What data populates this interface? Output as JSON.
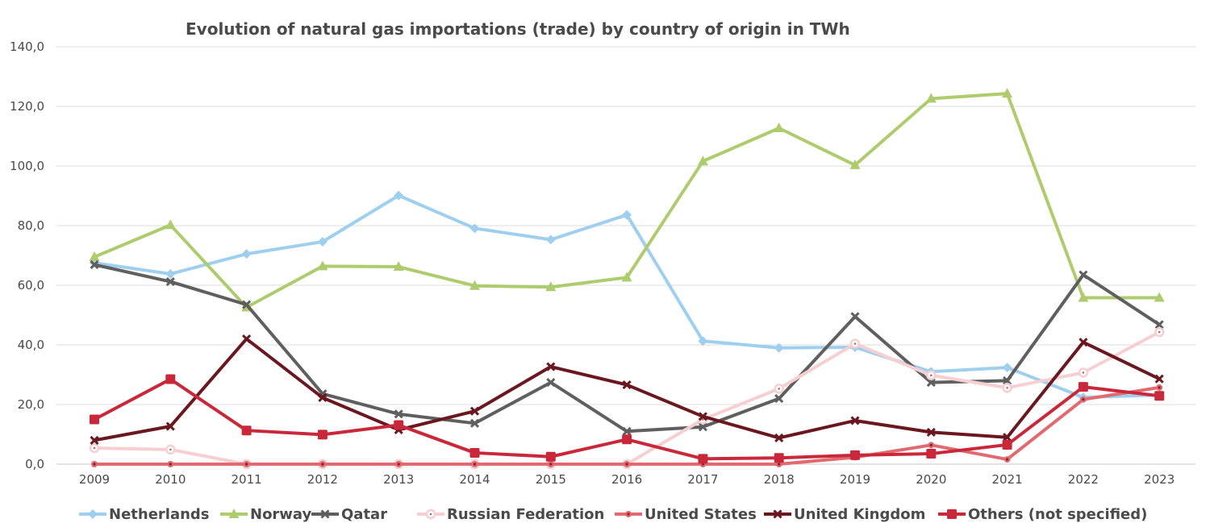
{
  "chart_data": {
    "type": "line",
    "title": "Evolution of natural gas importations (trade) by country of origin in TWh",
    "xlabel": "",
    "ylabel": "",
    "ylim": [
      0,
      140
    ],
    "y_ticks": [
      "0,0",
      "20,0",
      "40,0",
      "60,0",
      "80,0",
      "100,0",
      "120,0",
      "140,0"
    ],
    "grid": true,
    "legend_position": "bottom",
    "categories": [
      "2009",
      "2010",
      "2011",
      "2012",
      "2013",
      "2014",
      "2015",
      "2016",
      "2017",
      "2018",
      "2019",
      "2020",
      "2021",
      "2022",
      "2023"
    ],
    "series": [
      {
        "name": "Netherlands",
        "color": "#9fcfee",
        "marker": "diamond",
        "values": [
          67.5,
          63.8,
          70.5,
          74.6,
          90.1,
          79.1,
          75.3,
          83.6,
          41.3,
          39.0,
          39.2,
          31.0,
          32.4,
          22.4,
          23.2
        ]
      },
      {
        "name": "Norway",
        "color": "#aecc6d",
        "marker": "triangle",
        "values": [
          69.5,
          80.2,
          52.6,
          66.4,
          66.2,
          59.8,
          59.4,
          62.6,
          101.6,
          112.7,
          100.3,
          122.6,
          124.3,
          55.8,
          55.8
        ]
      },
      {
        "name": "Qatar",
        "color": "#5f5f5f",
        "marker": "x",
        "values": [
          66.9,
          61.2,
          53.5,
          23.6,
          16.8,
          13.7,
          27.4,
          11.0,
          12.5,
          22.0,
          49.5,
          27.4,
          28.0,
          63.5,
          46.8
        ]
      },
      {
        "name": "Russian Federation",
        "color": "#f5cfd1",
        "marker": "ring",
        "values": [
          5.4,
          4.9,
          0.0,
          0.0,
          0.0,
          0.0,
          0.0,
          0.0,
          15.0,
          25.3,
          40.4,
          29.8,
          25.6,
          30.7,
          44.3
        ]
      },
      {
        "name": "United States",
        "color": "#e06a70",
        "marker": "dot",
        "values": [
          0.0,
          0.0,
          0.0,
          0.0,
          0.0,
          0.0,
          0.0,
          0.0,
          0.0,
          0.0,
          2.3,
          6.4,
          1.6,
          21.7,
          25.7
        ]
      },
      {
        "name": "United Kingdom",
        "color": "#6b1720",
        "marker": "x",
        "values": [
          8.0,
          12.7,
          42.0,
          22.3,
          11.5,
          17.8,
          32.7,
          26.6,
          16.0,
          8.8,
          14.6,
          10.7,
          9.0,
          40.9,
          28.6
        ]
      },
      {
        "name": "Others (not specified)",
        "color": "#c9283a",
        "marker": "square",
        "values": [
          15.0,
          28.5,
          11.3,
          9.9,
          13.1,
          3.8,
          2.5,
          8.3,
          1.8,
          2.1,
          3.0,
          3.5,
          6.5,
          25.9,
          22.9
        ]
      }
    ]
  }
}
